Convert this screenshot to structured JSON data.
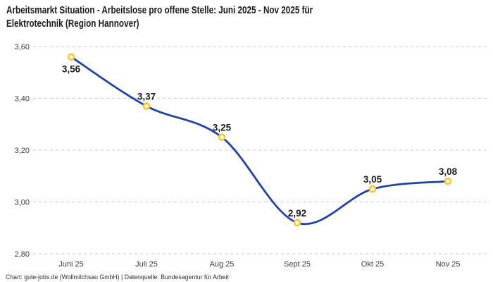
{
  "title": {
    "line1": "Arbeitsmarkt Situation - Arbeitslose pro offene Stelle: Juni 2025 - Nov 2025 für",
    "line2": "Elektrotechnik (Region Hannover)"
  },
  "footer": {
    "text": "Chart: gute-jobs.de (Wollmilchsau GmbH) | Datenquelle: Bundesagentur für Arbeit"
  },
  "chart_data": {
    "type": "line",
    "title": "Arbeitsmarkt Situation - Arbeitslose pro offene Stelle: Juni 2025 - Nov 2025 für Elektrotechnik (Region Hannover)",
    "categories": [
      "Juni 25",
      "Juli 25",
      "Aug 25",
      "Sept 25",
      "Okt 25",
      "Nov 25"
    ],
    "values": [
      3.56,
      3.37,
      3.25,
      2.92,
      3.05,
      3.08
    ],
    "value_labels": [
      "3,56",
      "3,37",
      "3,25",
      "2,92",
      "3,05",
      "3,08"
    ],
    "label_positions": [
      "below",
      "above",
      "above",
      "above",
      "above",
      "above"
    ],
    "ylim": [
      2.8,
      3.6
    ],
    "y_ticks": {
      "values": [
        3.6,
        3.4,
        3.2,
        3.0,
        2.8
      ],
      "labels": [
        "3,60",
        "3,40",
        "3,20",
        "3,00",
        "2,80"
      ]
    },
    "xlabel": "",
    "ylabel": "",
    "grid": "dashed-horizontal",
    "legend": "none",
    "line_style": "smooth",
    "colors": {
      "line": "#24429f",
      "marker_stroke": "#fcc32d",
      "marker_fill": "#ffffff",
      "grid": "#c9c9c9",
      "title": "#1a1a1a",
      "tick": "#3c3c3c",
      "value_label": "#1b1b1b",
      "background": "#ffffff"
    }
  }
}
